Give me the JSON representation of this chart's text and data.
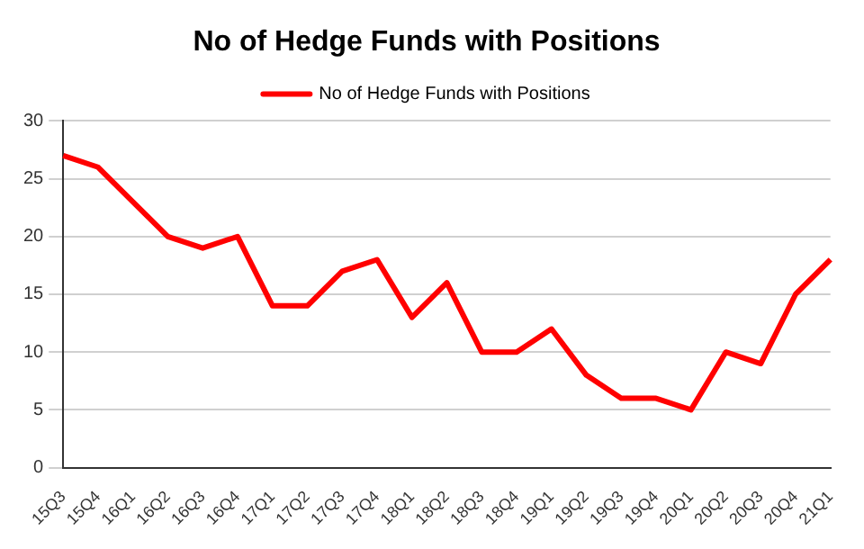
{
  "chart_data": {
    "type": "line",
    "title": "No of Hedge Funds with Positions",
    "categories": [
      "15Q3",
      "15Q4",
      "16Q1",
      "16Q2",
      "16Q3",
      "16Q4",
      "17Q1",
      "17Q2",
      "17Q3",
      "17Q4",
      "18Q1",
      "18Q2",
      "18Q3",
      "18Q4",
      "19Q1",
      "19Q2",
      "19Q3",
      "19Q4",
      "20Q1",
      "20Q2",
      "20Q3",
      "20Q4",
      "21Q1"
    ],
    "series": [
      {
        "name": "No of Hedge Funds with Positions",
        "color": "#ff0000",
        "values": [
          27,
          26,
          23,
          20,
          19,
          20,
          14,
          14,
          17,
          18,
          13,
          16,
          10,
          10,
          12,
          8,
          6,
          6,
          5,
          10,
          9,
          15,
          18
        ]
      }
    ],
    "ylim": [
      0,
      30
    ],
    "yticks": [
      0,
      5,
      10,
      15,
      20,
      25,
      30
    ],
    "grid": "y",
    "legend": "top",
    "marker": "none",
    "line_style": "solid"
  }
}
